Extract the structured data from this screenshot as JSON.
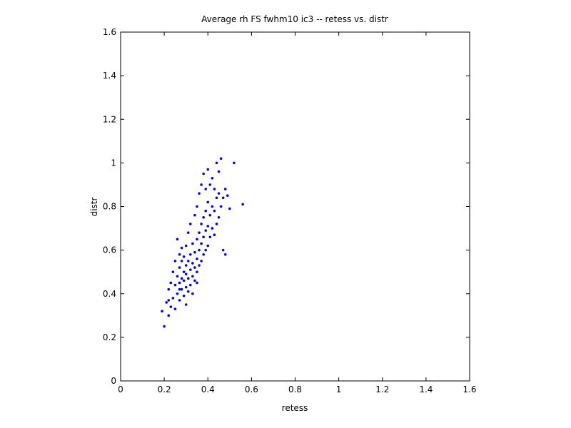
{
  "chart_data": {
    "type": "scatter",
    "title": "Average rh FS fwhm10 ic3 -- retess vs. distr",
    "x_label": "retess",
    "y_label": "distr",
    "xlim": [
      0,
      1.6
    ],
    "ylim": [
      0,
      1.6
    ],
    "xticks": [
      0,
      0.2,
      0.4,
      0.6,
      0.8,
      1,
      1.2,
      1.4,
      1.6
    ],
    "yticks": [
      0,
      0.2,
      0.4,
      0.6,
      0.8,
      1,
      1.2,
      1.4,
      1.6
    ],
    "grid": false,
    "color": "#0000ff",
    "x": [
      0.19,
      0.2,
      0.21,
      0.22,
      0.22,
      0.23,
      0.23,
      0.24,
      0.24,
      0.25,
      0.25,
      0.25,
      0.26,
      0.26,
      0.26,
      0.27,
      0.27,
      0.27,
      0.27,
      0.28,
      0.28,
      0.28,
      0.28,
      0.29,
      0.29,
      0.29,
      0.29,
      0.3,
      0.3,
      0.3,
      0.3,
      0.31,
      0.31,
      0.31,
      0.31,
      0.32,
      0.32,
      0.32,
      0.32,
      0.33,
      0.33,
      0.33,
      0.33,
      0.34,
      0.34,
      0.34,
      0.34,
      0.35,
      0.35,
      0.35,
      0.35,
      0.36,
      0.36,
      0.36,
      0.36,
      0.37,
      0.37,
      0.37,
      0.37,
      0.38,
      0.38,
      0.38,
      0.38,
      0.39,
      0.39,
      0.39,
      0.39,
      0.4,
      0.4,
      0.4,
      0.4,
      0.41,
      0.41,
      0.41,
      0.42,
      0.42,
      0.42,
      0.43,
      0.43,
      0.43,
      0.44,
      0.44,
      0.44,
      0.45,
      0.45,
      0.45,
      0.46,
      0.46,
      0.47,
      0.47,
      0.48,
      0.48,
      0.49,
      0.5,
      0.52,
      0.56,
      0.22,
      0.27,
      0.3,
      0.35
    ],
    "values": [
      0.32,
      0.25,
      0.36,
      0.3,
      0.42,
      0.34,
      0.45,
      0.38,
      0.5,
      0.33,
      0.44,
      0.55,
      0.4,
      0.48,
      0.65,
      0.37,
      0.45,
      0.52,
      0.58,
      0.42,
      0.47,
      0.55,
      0.61,
      0.39,
      0.46,
      0.5,
      0.57,
      0.43,
      0.49,
      0.53,
      0.62,
      0.41,
      0.47,
      0.55,
      0.68,
      0.44,
      0.51,
      0.58,
      0.72,
      0.4,
      0.48,
      0.54,
      0.63,
      0.46,
      0.52,
      0.59,
      0.76,
      0.5,
      0.56,
      0.65,
      0.8,
      0.53,
      0.6,
      0.68,
      0.86,
      0.55,
      0.63,
      0.72,
      0.9,
      0.58,
      0.66,
      0.75,
      0.95,
      0.6,
      0.69,
      0.78,
      0.88,
      0.62,
      0.71,
      0.82,
      0.97,
      0.66,
      0.76,
      0.9,
      0.7,
      0.8,
      0.93,
      0.67,
      0.78,
      0.88,
      0.72,
      0.84,
      1.0,
      0.75,
      0.86,
      0.96,
      0.8,
      1.02,
      0.84,
      0.6,
      0.88,
      0.58,
      0.85,
      0.79,
      1.0,
      0.81,
      0.37,
      0.42,
      0.35,
      0.45
    ]
  }
}
